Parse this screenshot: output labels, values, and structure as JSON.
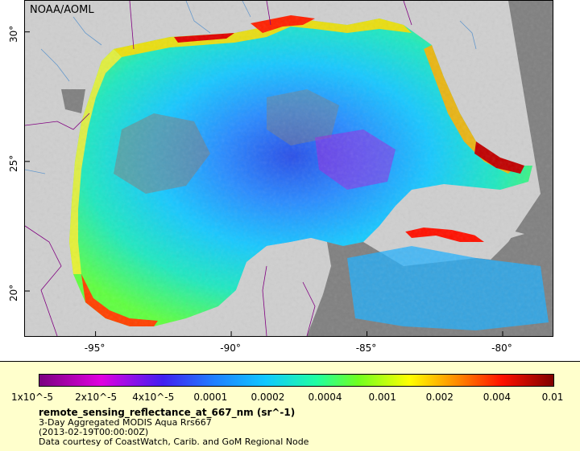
{
  "map": {
    "credit": "NOAA/AOML",
    "lat_labels": [
      {
        "label": "30°",
        "lat": 30
      },
      {
        "label": "25°",
        "lat": 25
      },
      {
        "label": "20°",
        "lat": 20
      }
    ],
    "lon_labels": [
      {
        "label": "-95°",
        "lon": -95
      },
      {
        "label": "-90°",
        "lon": -90
      },
      {
        "label": "-85°",
        "lon": -85
      },
      {
        "label": "-80°",
        "lon": -80
      }
    ],
    "colors": {
      "land": "#cfcfcf",
      "nodata": "#808080",
      "borders": "#800080",
      "rivers": "#6699cc"
    }
  },
  "legend": {
    "ticks": [
      "1x10^-5",
      "2x10^-5",
      "4x10^-5",
      "0.0001",
      "0.0002",
      "0.0004",
      "0.001",
      "0.002",
      "0.004",
      "0.01"
    ],
    "variable": "remote_sensing_reflectance_at_667_nm (sr^-1)",
    "product": "3-Day Aggregated MODIS Aqua Rrs667",
    "time": "(2013-02-19T00:00:00Z)",
    "courtesy": "Data courtesy of CoastWatch, Carib. and GoM Regional Node",
    "background": "#ffffcc"
  }
}
